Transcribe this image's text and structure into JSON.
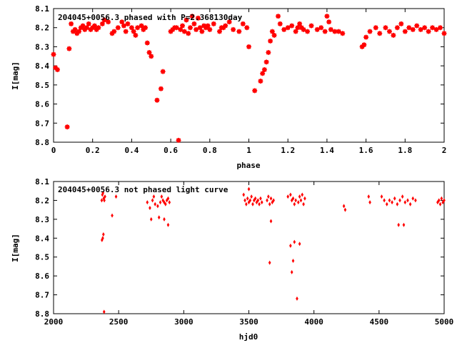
{
  "colors": {
    "marker": "#ff0000",
    "frame": "#000000",
    "background": "#ffffff"
  },
  "chart_data": [
    {
      "type": "scatter",
      "title": "204045+0056.3 phased with P=2.368130day",
      "xlabel": "phase",
      "ylabel": "I[mag]",
      "xlim": [
        0,
        2
      ],
      "ylim": [
        8.1,
        8.8
      ],
      "y_inverted": true,
      "grid": false,
      "marker": "asterisk",
      "xticks": [
        "0",
        "0.2",
        "0.4",
        "0.6",
        "0.8",
        "1",
        "1.2",
        "1.4",
        "1.6",
        "1.8",
        "2"
      ],
      "yticks": [
        "8.1",
        "8.2",
        "8.3",
        "8.4",
        "8.5",
        "8.6",
        "8.7",
        "8.8"
      ],
      "series": [
        {
          "x": [
            0.0,
            0.01,
            0.02,
            0.07,
            0.08,
            0.09,
            0.1,
            0.11,
            0.12,
            0.13,
            0.14,
            0.15,
            0.16,
            0.17,
            0.18,
            0.19,
            0.2,
            0.21,
            0.22,
            0.23,
            0.25,
            0.26,
            0.28,
            0.3,
            0.31,
            0.33,
            0.35,
            0.36,
            0.37,
            0.38,
            0.4,
            0.41,
            0.42,
            0.43,
            0.45,
            0.46,
            0.47,
            0.48,
            0.49,
            0.5,
            0.53,
            0.55,
            0.56,
            0.64,
            0.6,
            0.61,
            0.62,
            0.63,
            0.65,
            0.66,
            0.67,
            0.68,
            0.69,
            0.7,
            0.71,
            0.72,
            0.73,
            0.74,
            0.75,
            0.76,
            0.77,
            0.78,
            0.79,
            0.8,
            0.82,
            0.85,
            0.86,
            0.87,
            0.88,
            0.9,
            0.92,
            0.95,
            0.97,
            0.99,
            1.0,
            1.03,
            1.06,
            1.07,
            1.08,
            1.09,
            1.1,
            1.11,
            1.12,
            1.13,
            1.15,
            1.16,
            1.18,
            1.2,
            1.22,
            1.24,
            1.25,
            1.26,
            1.27,
            1.28,
            1.3,
            1.32,
            1.35,
            1.37,
            1.39,
            1.4,
            1.41,
            1.42,
            1.44,
            1.46,
            1.48,
            1.58,
            1.59,
            1.6,
            1.62,
            1.65,
            1.67,
            1.7,
            1.72,
            1.74,
            1.76,
            1.78,
            1.8,
            1.82,
            1.84,
            1.86,
            1.88,
            1.9,
            1.92,
            1.94,
            1.96,
            1.98,
            2.0
          ],
          "y": [
            8.34,
            8.41,
            8.42,
            8.72,
            8.31,
            8.18,
            8.22,
            8.21,
            8.23,
            8.22,
            8.2,
            8.19,
            8.21,
            8.2,
            8.18,
            8.21,
            8.2,
            8.19,
            8.21,
            8.2,
            8.18,
            8.16,
            8.17,
            8.23,
            8.22,
            8.2,
            8.17,
            8.19,
            8.22,
            8.18,
            8.2,
            8.22,
            8.24,
            8.2,
            8.19,
            8.21,
            8.2,
            8.28,
            8.33,
            8.35,
            8.58,
            8.52,
            8.43,
            8.79,
            8.22,
            8.21,
            8.2,
            8.2,
            8.21,
            8.19,
            8.22,
            8.16,
            8.23,
            8.2,
            8.14,
            8.18,
            8.21,
            8.15,
            8.2,
            8.22,
            8.19,
            8.2,
            8.19,
            8.21,
            8.18,
            8.22,
            8.2,
            8.2,
            8.19,
            8.17,
            8.21,
            8.22,
            8.18,
            8.2,
            8.3,
            8.53,
            8.48,
            8.44,
            8.42,
            8.38,
            8.33,
            8.27,
            8.22,
            8.24,
            8.14,
            8.18,
            8.21,
            8.2,
            8.19,
            8.22,
            8.2,
            8.18,
            8.2,
            8.21,
            8.22,
            8.19,
            8.21,
            8.2,
            8.22,
            8.14,
            8.17,
            8.21,
            8.22,
            8.22,
            8.23,
            8.3,
            8.29,
            8.25,
            8.22,
            8.2,
            8.23,
            8.2,
            8.22,
            8.24,
            8.2,
            8.18,
            8.22,
            8.2,
            8.21,
            8.19,
            8.21,
            8.2,
            8.22,
            8.2,
            8.21,
            8.2,
            8.23
          ]
        }
      ]
    },
    {
      "type": "scatter",
      "title": "204045+0056.3 not phased light curve",
      "xlabel": "hjd0",
      "ylabel": "I[mag]",
      "xlim": [
        2000,
        5000
      ],
      "ylim": [
        8.1,
        8.8
      ],
      "y_inverted": true,
      "grid": false,
      "marker": "diamond",
      "xticks": [
        "2000",
        "2500",
        "3000",
        "3500",
        "4000",
        "4500",
        "5000"
      ],
      "yticks": [
        "8.1",
        "8.2",
        "8.3",
        "8.4",
        "8.5",
        "8.6",
        "8.7",
        "8.8"
      ],
      "series": [
        {
          "x": [
            2370,
            2375,
            2380,
            2385,
            2390,
            2395,
            2372,
            2378,
            2383,
            2388,
            2450,
            2480,
            2720,
            2740,
            2750,
            2760,
            2780,
            2800,
            2820,
            2830,
            2840,
            2850,
            2860,
            2870,
            2880,
            2890,
            2770,
            2810,
            2850,
            2880,
            3460,
            3470,
            3480,
            3490,
            3500,
            3510,
            3520,
            3530,
            3540,
            3550,
            3560,
            3570,
            3580,
            3590,
            3600,
            3640,
            3650,
            3660,
            3670,
            3680,
            3690,
            3500,
            3660,
            3670,
            3800,
            3820,
            3830,
            3840,
            3850,
            3860,
            3880,
            3890,
            3900,
            3910,
            3920,
            3930,
            3820,
            3830,
            3840,
            3850,
            3870,
            3890,
            4230,
            4240,
            4420,
            4430,
            4520,
            4540,
            4560,
            4580,
            4600,
            4620,
            4640,
            4660,
            4680,
            4700,
            4720,
            4740,
            4760,
            4780,
            4650,
            4690,
            4950,
            4960,
            4970,
            4980,
            4990,
            5000
          ],
          "y": [
            8.2,
            8.17,
            8.16,
            8.19,
            8.2,
            8.18,
            8.41,
            8.4,
            8.38,
            8.79,
            8.28,
            8.18,
            8.21,
            8.24,
            8.3,
            8.2,
            8.22,
            8.23,
            8.21,
            8.18,
            8.2,
            8.21,
            8.22,
            8.2,
            8.19,
            8.21,
            8.18,
            8.29,
            8.3,
            8.33,
            8.17,
            8.2,
            8.22,
            8.19,
            8.21,
            8.2,
            8.18,
            8.22,
            8.2,
            8.19,
            8.21,
            8.2,
            8.22,
            8.19,
            8.21,
            8.2,
            8.18,
            8.22,
            8.19,
            8.21,
            8.2,
            8.14,
            8.53,
            8.31,
            8.18,
            8.17,
            8.2,
            8.19,
            8.22,
            8.2,
            8.21,
            8.18,
            8.2,
            8.17,
            8.22,
            8.19,
            8.44,
            8.58,
            8.52,
            8.42,
            8.72,
            8.43,
            8.23,
            8.25,
            8.18,
            8.21,
            8.18,
            8.2,
            8.22,
            8.2,
            8.21,
            8.19,
            8.22,
            8.2,
            8.18,
            8.21,
            8.2,
            8.22,
            8.19,
            8.2,
            8.33,
            8.33,
            8.21,
            8.2,
            8.22,
            8.19,
            8.21,
            8.2
          ]
        }
      ]
    }
  ]
}
